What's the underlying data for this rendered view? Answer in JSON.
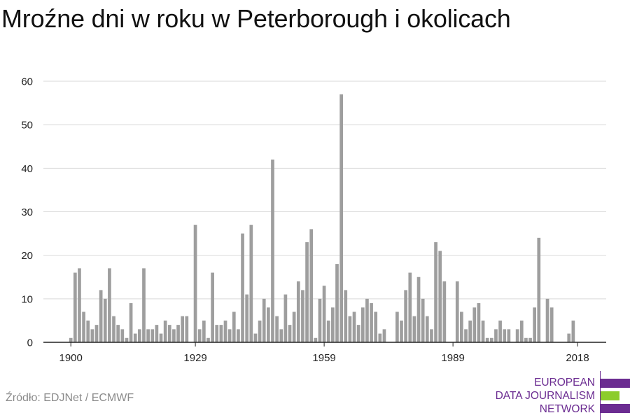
{
  "title": "Mroźne dni w roku w Peterborough i okolicach",
  "source": "Źródło: EDJNet / ECMWF",
  "logo": {
    "lines": [
      "EUROPEAN",
      "DATA JOURNALISM",
      "NETWORK"
    ],
    "colors": {
      "purple": "#6b2c91",
      "green": "#8ccc2c"
    }
  },
  "colors": {
    "bar": "#9e9e9e",
    "grid": "#d9d9d9",
    "axis": "#222222",
    "text": "#222222"
  },
  "chart_data": {
    "type": "bar",
    "title": "Mroźne dni w roku w Peterborough i okolicach",
    "xlabel": "",
    "ylabel": "",
    "ylim": [
      0,
      60
    ],
    "yticks": [
      0,
      10,
      20,
      30,
      40,
      50,
      60
    ],
    "xticks": [
      1900,
      1929,
      1959,
      1989,
      2018
    ],
    "grid": true,
    "legend": "none",
    "x": [
      1900,
      1901,
      1902,
      1903,
      1904,
      1905,
      1906,
      1907,
      1908,
      1909,
      1910,
      1911,
      1912,
      1913,
      1914,
      1915,
      1916,
      1917,
      1918,
      1919,
      1920,
      1921,
      1922,
      1923,
      1924,
      1925,
      1926,
      1927,
      1928,
      1929,
      1930,
      1931,
      1932,
      1933,
      1934,
      1935,
      1936,
      1937,
      1938,
      1939,
      1940,
      1941,
      1942,
      1943,
      1944,
      1945,
      1946,
      1947,
      1948,
      1949,
      1950,
      1951,
      1952,
      1953,
      1954,
      1955,
      1956,
      1957,
      1958,
      1959,
      1960,
      1961,
      1962,
      1963,
      1964,
      1965,
      1966,
      1967,
      1968,
      1969,
      1970,
      1971,
      1972,
      1973,
      1974,
      1975,
      1976,
      1977,
      1978,
      1979,
      1980,
      1981,
      1982,
      1983,
      1984,
      1985,
      1986,
      1987,
      1988,
      1989,
      1990,
      1991,
      1992,
      1993,
      1994,
      1995,
      1996,
      1997,
      1998,
      1999,
      2000,
      2001,
      2002,
      2003,
      2004,
      2005,
      2006,
      2007,
      2008,
      2009,
      2010,
      2011,
      2012,
      2013,
      2014,
      2015,
      2016,
      2017,
      2018
    ],
    "values": [
      1,
      16,
      17,
      7,
      5,
      3,
      4,
      12,
      10,
      17,
      6,
      4,
      3,
      1,
      9,
      2,
      3,
      17,
      3,
      3,
      4,
      2,
      5,
      4,
      3,
      4,
      6,
      6,
      0,
      27,
      3,
      5,
      1,
      16,
      4,
      4,
      5,
      3,
      7,
      3,
      25,
      11,
      27,
      2,
      5,
      10,
      8,
      42,
      6,
      3,
      11,
      4,
      7,
      14,
      12,
      23,
      26,
      1,
      10,
      13,
      5,
      8,
      18,
      57,
      12,
      6,
      7,
      4,
      8,
      10,
      9,
      7,
      2,
      3,
      0,
      0,
      7,
      5,
      12,
      16,
      6,
      15,
      10,
      6,
      3,
      23,
      21,
      14,
      0,
      0,
      14,
      7,
      3,
      5,
      8,
      9,
      5,
      1,
      1,
      3,
      5,
      3,
      3,
      0,
      3,
      5,
      1,
      1,
      8,
      24,
      0,
      10,
      8,
      0,
      0,
      0,
      2,
      5,
      0
    ]
  }
}
